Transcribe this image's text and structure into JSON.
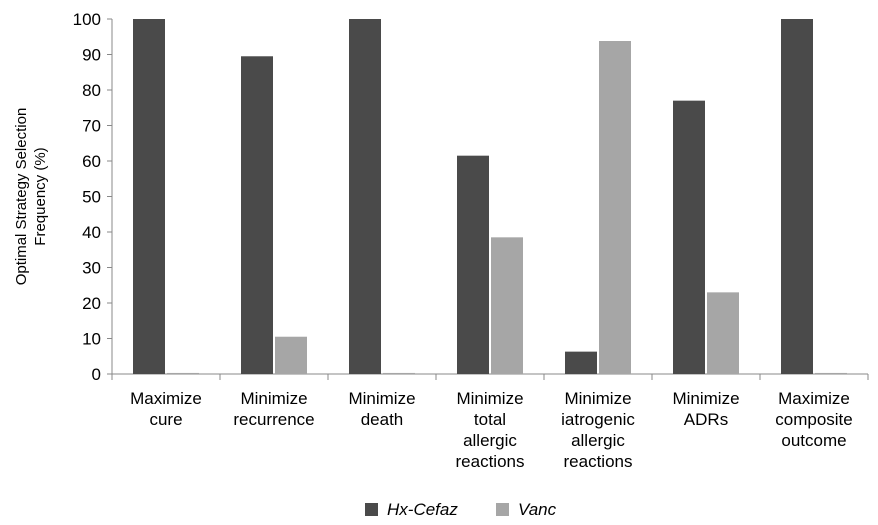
{
  "chart_data": {
    "type": "bar",
    "title": "",
    "xlabel": "",
    "ylabel": [
      "Optimal Strategy Selection",
      "Frequency (%)"
    ],
    "ylim": [
      0,
      100
    ],
    "yticks": [
      0,
      10,
      20,
      30,
      40,
      50,
      60,
      70,
      80,
      90,
      100
    ],
    "grid": false,
    "legend_position": "bottom-center",
    "categories": [
      [
        "Maximize",
        "cure"
      ],
      [
        "Minimize",
        "recurrence"
      ],
      [
        "Minimize",
        "death"
      ],
      [
        "Minimize",
        "total",
        "allergic",
        "reactions"
      ],
      [
        "Minimize",
        "iatrogenic",
        "allergic",
        "reactions"
      ],
      [
        "Minimize",
        "ADRs"
      ],
      [
        "Maximize",
        "composite",
        "outcome"
      ]
    ],
    "series": [
      {
        "name": "Hx-Cefaz",
        "color": "#4a4a4a",
        "values": [
          100,
          89.5,
          100,
          61.5,
          6.3,
          77,
          100
        ]
      },
      {
        "name": "Vanc",
        "color": "#a6a6a6",
        "values": [
          0.3,
          10.5,
          0.3,
          38.5,
          93.8,
          23,
          0.3
        ]
      }
    ]
  }
}
